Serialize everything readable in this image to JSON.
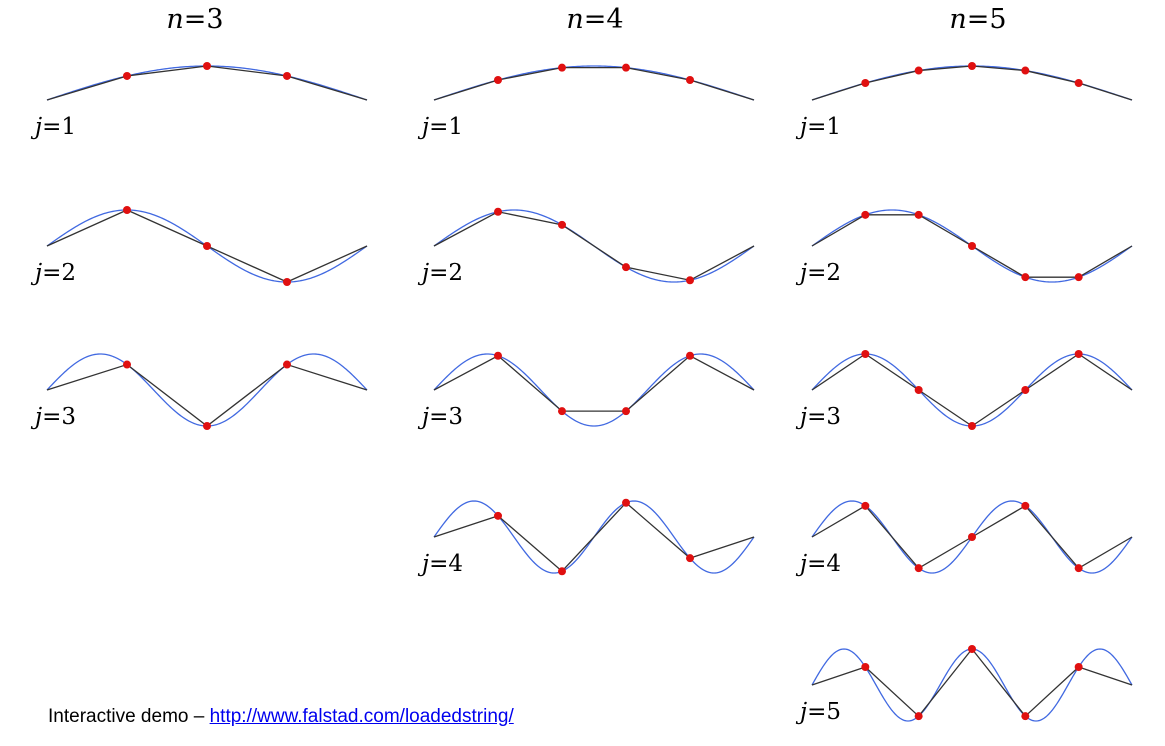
{
  "colors": {
    "sine_curve": "#4169e1",
    "chain": "#333333",
    "mass": "#e01010"
  },
  "columns": [
    {
      "label": "n=3",
      "n": 3,
      "modes": [
        {
          "label": "j=1",
          "j": 1
        },
        {
          "label": "j=2",
          "j": 2
        },
        {
          "label": "j=3",
          "j": 3
        }
      ]
    },
    {
      "label": "n=4",
      "n": 4,
      "modes": [
        {
          "label": "j=1",
          "j": 1
        },
        {
          "label": "j=2",
          "j": 2
        },
        {
          "label": "j=3",
          "j": 3
        },
        {
          "label": "j=4",
          "j": 4
        }
      ]
    },
    {
      "label": "n=5",
      "n": 5,
      "modes": [
        {
          "label": "j=1",
          "j": 1
        },
        {
          "label": "j=2",
          "j": 2
        },
        {
          "label": "j=3",
          "j": 3
        },
        {
          "label": "j=4",
          "j": 4
        },
        {
          "label": "j=5",
          "j": 5
        }
      ]
    }
  ],
  "footer": {
    "prefix": "Interactive demo – ",
    "link_text": "http://www.falstad.com/loadedstring/"
  }
}
